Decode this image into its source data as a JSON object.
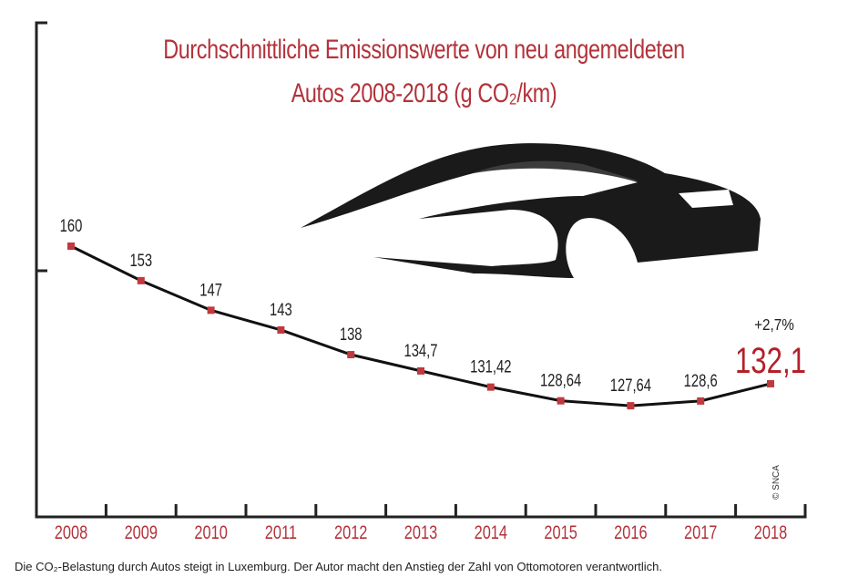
{
  "chart_data": {
    "type": "line",
    "title_line1": "Durchschnittliche Emissionswerte von neu angemeldeten",
    "title_line2": "Autos 2008-2018 (g CO₂/km)",
    "categories": [
      "2008",
      "2009",
      "2010",
      "2011",
      "2012",
      "2013",
      "2014",
      "2015",
      "2016",
      "2017",
      "2018"
    ],
    "values": [
      160,
      153,
      147,
      143,
      138,
      134.7,
      131.42,
      128.64,
      127.64,
      128.6,
      132.1
    ],
    "value_labels": [
      "160",
      "153",
      "147",
      "143",
      "138",
      "134,7",
      "131,42",
      "128,64",
      "127,64",
      "128,6",
      "132,1"
    ],
    "annotation": "+2,7%",
    "xlabel": "",
    "ylabel": "",
    "colors": {
      "line": "#111111",
      "marker": "#c0393f",
      "title": "#b3323a",
      "axis_labels": "#b3323a",
      "highlight": "#b3202a"
    }
  },
  "credit": "© SNCA",
  "caption": "Die CO₂-Belastung durch Autos steigt in Luxemburg. Der Autor macht den Anstieg der Zahl von Ottomotoren verantwortlich."
}
